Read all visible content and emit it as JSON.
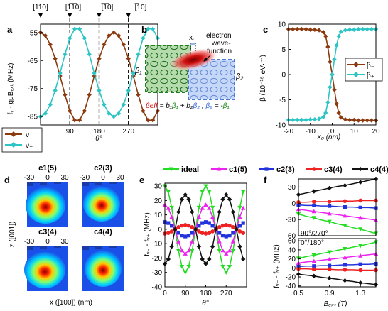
{
  "colors": {
    "minus": "#8B3A0F",
    "plus": "#2CC4C4",
    "ideal": "#22DD22",
    "c1": "#EE22EE",
    "c2": "#2233DD",
    "c3": "#EE2222",
    "c4": "#111111"
  },
  "panel_a": {
    "letter": "a",
    "top_labels": [
      "[110]",
      "[1̅1̅0]",
      "[̅1̅0]",
      "[̅10]"
    ],
    "top_labels_text": [
      "[110]",
      "[1-10]",
      "[-1-10]",
      "[-110]"
    ],
    "ylabel": "fᵥ - gμBₑₓₜ (MHz)",
    "xlabel": "θ°",
    "legend": [
      "ν₋",
      "ν₊"
    ]
  },
  "panel_b": {
    "letter": "b",
    "x0": "x₀",
    "electron": [
      "electron",
      "wave-",
      "function"
    ],
    "beta1": "β₁",
    "beta2": "β₂",
    "formula": "βeff = b₁β₁ + b₂β₂ ; β₂ = -β₁"
  },
  "panel_c": {
    "letter": "c",
    "ylabel": "β (10⁻¹⁵ eV·m)",
    "xlabel": "x₀ (nm)",
    "legend": [
      "β₋",
      "β₊"
    ]
  },
  "panel_d": {
    "letter": "d",
    "titles": [
      "c1(5)",
      "c2(3)",
      "c3(4)",
      "c4(4)"
    ],
    "ticks": [
      "-30",
      "0",
      "30"
    ],
    "ylabel": "z ([001])",
    "xlabel": "x ([100])   (nm)"
  },
  "panel_e": {
    "letter": "e",
    "legend": [
      "ideal",
      "c1(5)",
      "c2(3)",
      "c3(4)",
      "c4(4)"
    ],
    "ylabel": "fᵥ₋ - fᵥ₊ (MHz)",
    "xlabel": "θ°"
  },
  "panel_f": {
    "letter": "f",
    "ylabel": "fᵥ₋ - fᵥ₊ (MHz)",
    "xlabel": "Bₑₓₜ (T)",
    "top_annot": "90°/270°",
    "bottom_annot": "0°/180°"
  },
  "chart_data": [
    {
      "id": "a",
      "type": "line",
      "xlim": [
        0,
        360
      ],
      "ylim": [
        -88,
        -52
      ],
      "xticks": [
        0,
        90,
        180,
        270
      ],
      "yticks": [
        -85,
        -75,
        -65,
        -55
      ],
      "series": [
        {
          "name": "ν₋",
          "color": "#8B3A0F",
          "x": [
            0,
            15,
            30,
            45,
            60,
            75,
            90,
            105,
            120,
            135,
            150,
            165,
            180,
            195,
            210,
            225,
            240,
            255,
            270,
            285,
            300,
            315,
            330,
            345,
            360
          ],
          "y": [
            -55,
            -56.1,
            -59.3,
            -64.3,
            -70.5,
            -77.2,
            -83.0,
            -86.3,
            -86.3,
            -83.0,
            -77.2,
            -70.5,
            -64.3,
            -59.3,
            -56.1,
            -55,
            -56.1,
            -59.3,
            -64.3,
            -70.5,
            -77.2,
            -83.0,
            -86.3,
            -86.3,
            -83.0
          ]
        },
        {
          "name": "ν₊",
          "color": "#2CC4C4",
          "x": [
            0,
            15,
            30,
            45,
            60,
            75,
            90,
            105,
            120,
            135,
            150,
            165,
            180,
            195,
            210,
            225,
            240,
            255,
            270,
            285,
            300,
            315,
            330,
            345,
            360
          ],
          "y": [
            -85,
            -83.9,
            -80.7,
            -75.7,
            -69.5,
            -62.8,
            -57.0,
            -53.7,
            -53.7,
            -57.0,
            -62.8,
            -69.5,
            -75.7,
            -80.7,
            -83.9,
            -85,
            -83.9,
            -80.7,
            -75.7,
            -69.5,
            -62.8,
            -57.0,
            -53.7,
            -53.7,
            -57.0
          ]
        }
      ]
    },
    {
      "id": "c",
      "type": "line",
      "xlim": [
        -20,
        20
      ],
      "ylim": [
        -10,
        10
      ],
      "xticks": [
        -20,
        -10,
        0,
        10,
        20
      ],
      "yticks": [
        -10,
        -5,
        0,
        5,
        10
      ],
      "series": [
        {
          "name": "β₋",
          "color": "#8B3A0F",
          "x": [
            -20,
            -18,
            -16,
            -14,
            -12,
            -10,
            -8,
            -6,
            -4,
            -3,
            -2,
            -1,
            0,
            1,
            2,
            3,
            4,
            6,
            8,
            10,
            12,
            14,
            16,
            18,
            20
          ],
          "y": [
            9.0,
            9.0,
            9.0,
            9.0,
            9.0,
            8.9,
            8.9,
            8.8,
            8.4,
            7.6,
            5.5,
            2.5,
            0.0,
            -3.0,
            -5.8,
            -7.6,
            -8.5,
            -8.9,
            -9.0,
            -9.0,
            -9.1,
            -9.1,
            -9.1,
            -9.1,
            -9.1
          ]
        },
        {
          "name": "β₊",
          "color": "#2CC4C4",
          "x": [
            -20,
            -18,
            -16,
            -14,
            -12,
            -10,
            -8,
            -6,
            -4,
            -3,
            -2,
            -1,
            0,
            1,
            2,
            3,
            4,
            6,
            8,
            10,
            12,
            14,
            16,
            18,
            20
          ],
          "y": [
            -9.0,
            -9.0,
            -9.0,
            -9.0,
            -9.0,
            -8.9,
            -8.9,
            -8.8,
            -8.4,
            -7.6,
            -5.5,
            -2.5,
            0.0,
            3.0,
            5.8,
            7.6,
            8.5,
            8.8,
            8.9,
            8.9,
            9.0,
            9.0,
            9.0,
            9.0,
            9.0
          ]
        }
      ]
    },
    {
      "id": "e",
      "type": "line",
      "xlim": [
        0,
        360
      ],
      "ylim": [
        -40,
        32
      ],
      "xticks": [
        0,
        90,
        180,
        270
      ],
      "yticks": [
        -40,
        -30,
        -20,
        -10,
        0,
        10,
        20,
        30
      ],
      "series": [
        {
          "name": "ideal",
          "color": "#22DD22",
          "amplitude": 30
        },
        {
          "name": "c1(5)",
          "color": "#EE22EE",
          "amplitude": 17
        },
        {
          "name": "c2(3)",
          "color": "#2233DD",
          "amplitude": 5
        },
        {
          "name": "c3(4)",
          "color": "#EE2222",
          "amplitude": -3
        },
        {
          "name": "c4(4)",
          "color": "#111111",
          "amplitude": -24
        }
      ]
    },
    {
      "id": "f_top",
      "type": "line",
      "annotation": "90°/270°",
      "xlim": [
        0.5,
        1.5
      ],
      "ylim": [
        -60,
        45
      ],
      "yticks": [
        -60,
        -30,
        0,
        30
      ],
      "series": [
        {
          "name": "ideal",
          "color": "#22DD22",
          "x": [
            0.5,
            0.6,
            0.7,
            0.8,
            0.9,
            1.0,
            1.1,
            1.2,
            1.3,
            1.4,
            1.5
          ],
          "y": [
            -20,
            -24,
            -27,
            -31,
            -34,
            -38,
            -41,
            -45,
            -48,
            -52,
            -56
          ]
        },
        {
          "name": "c1(5)",
          "color": "#EE22EE",
          "x": [
            0.5,
            0.6,
            0.7,
            0.8,
            0.9,
            1.0,
            1.1,
            1.2,
            1.3,
            1.4,
            1.5
          ],
          "y": [
            -11,
            -13,
            -15,
            -17,
            -19,
            -21,
            -23,
            -25,
            -27,
            -29,
            -31
          ]
        },
        {
          "name": "c2(3)",
          "color": "#2233DD",
          "x": [
            0.5,
            0.6,
            0.7,
            0.8,
            0.9,
            1.0,
            1.1,
            1.2,
            1.3,
            1.4,
            1.5
          ],
          "y": [
            -3,
            -4,
            -4,
            -5,
            -5,
            -6,
            -7,
            -7,
            -8,
            -8,
            -9
          ]
        },
        {
          "name": "c3(4)",
          "color": "#EE2222",
          "x": [
            0.5,
            0.6,
            0.7,
            0.8,
            0.9,
            1.0,
            1.1,
            1.2,
            1.3,
            1.4,
            1.5
          ],
          "y": [
            2,
            2,
            3,
            3,
            3,
            4,
            4,
            4,
            5,
            5,
            5
          ]
        },
        {
          "name": "c4(4)",
          "color": "#111111",
          "x": [
            0.5,
            0.6,
            0.7,
            0.8,
            0.9,
            1.0,
            1.1,
            1.2,
            1.3,
            1.4,
            1.5
          ],
          "y": [
            16,
            19,
            22,
            25,
            28,
            31,
            33,
            36,
            39,
            42,
            45
          ]
        }
      ]
    },
    {
      "id": "f_bottom",
      "type": "line",
      "annotation": "0°/180°",
      "xlim": [
        0.5,
        1.5
      ],
      "ylim": [
        -42,
        65
      ],
      "xticks": [
        0.5,
        0.9,
        1.3
      ],
      "yticks": [
        -40,
        -20,
        0,
        20,
        40,
        60
      ],
      "series": [
        {
          "name": "ideal",
          "color": "#22DD22",
          "x": [
            0.5,
            0.6,
            0.7,
            0.8,
            0.9,
            1.0,
            1.1,
            1.2,
            1.3,
            1.4,
            1.5
          ],
          "y": [
            21,
            25,
            28,
            32,
            35,
            39,
            42,
            46,
            49,
            53,
            57
          ]
        },
        {
          "name": "c1(5)",
          "color": "#EE22EE",
          "x": [
            0.5,
            0.6,
            0.7,
            0.8,
            0.9,
            1.0,
            1.1,
            1.2,
            1.3,
            1.4,
            1.5
          ],
          "y": [
            11,
            13,
            15,
            17,
            19,
            21,
            23,
            25,
            27,
            29,
            31
          ]
        },
        {
          "name": "c2(3)",
          "color": "#2233DD",
          "x": [
            0.5,
            0.6,
            0.7,
            0.8,
            0.9,
            1.0,
            1.1,
            1.2,
            1.3,
            1.4,
            1.5
          ],
          "y": [
            3,
            4,
            4,
            5,
            5,
            6,
            7,
            7,
            8,
            8,
            9
          ]
        },
        {
          "name": "c3(4)",
          "color": "#EE2222",
          "x": [
            0.5,
            0.6,
            0.7,
            0.8,
            0.9,
            1.0,
            1.1,
            1.2,
            1.3,
            1.4,
            1.5
          ],
          "y": [
            -2,
            -2,
            -3,
            -3,
            -3,
            -4,
            -4,
            -4,
            -5,
            -5,
            -5
          ]
        },
        {
          "name": "c4(4)",
          "color": "#111111",
          "x": [
            0.5,
            0.6,
            0.7,
            0.8,
            0.9,
            1.0,
            1.1,
            1.2,
            1.3,
            1.4,
            1.5
          ],
          "y": [
            -14,
            -16,
            -18,
            -21,
            -23,
            -25,
            -28,
            -30,
            -33,
            -35,
            -37
          ]
        }
      ]
    }
  ]
}
